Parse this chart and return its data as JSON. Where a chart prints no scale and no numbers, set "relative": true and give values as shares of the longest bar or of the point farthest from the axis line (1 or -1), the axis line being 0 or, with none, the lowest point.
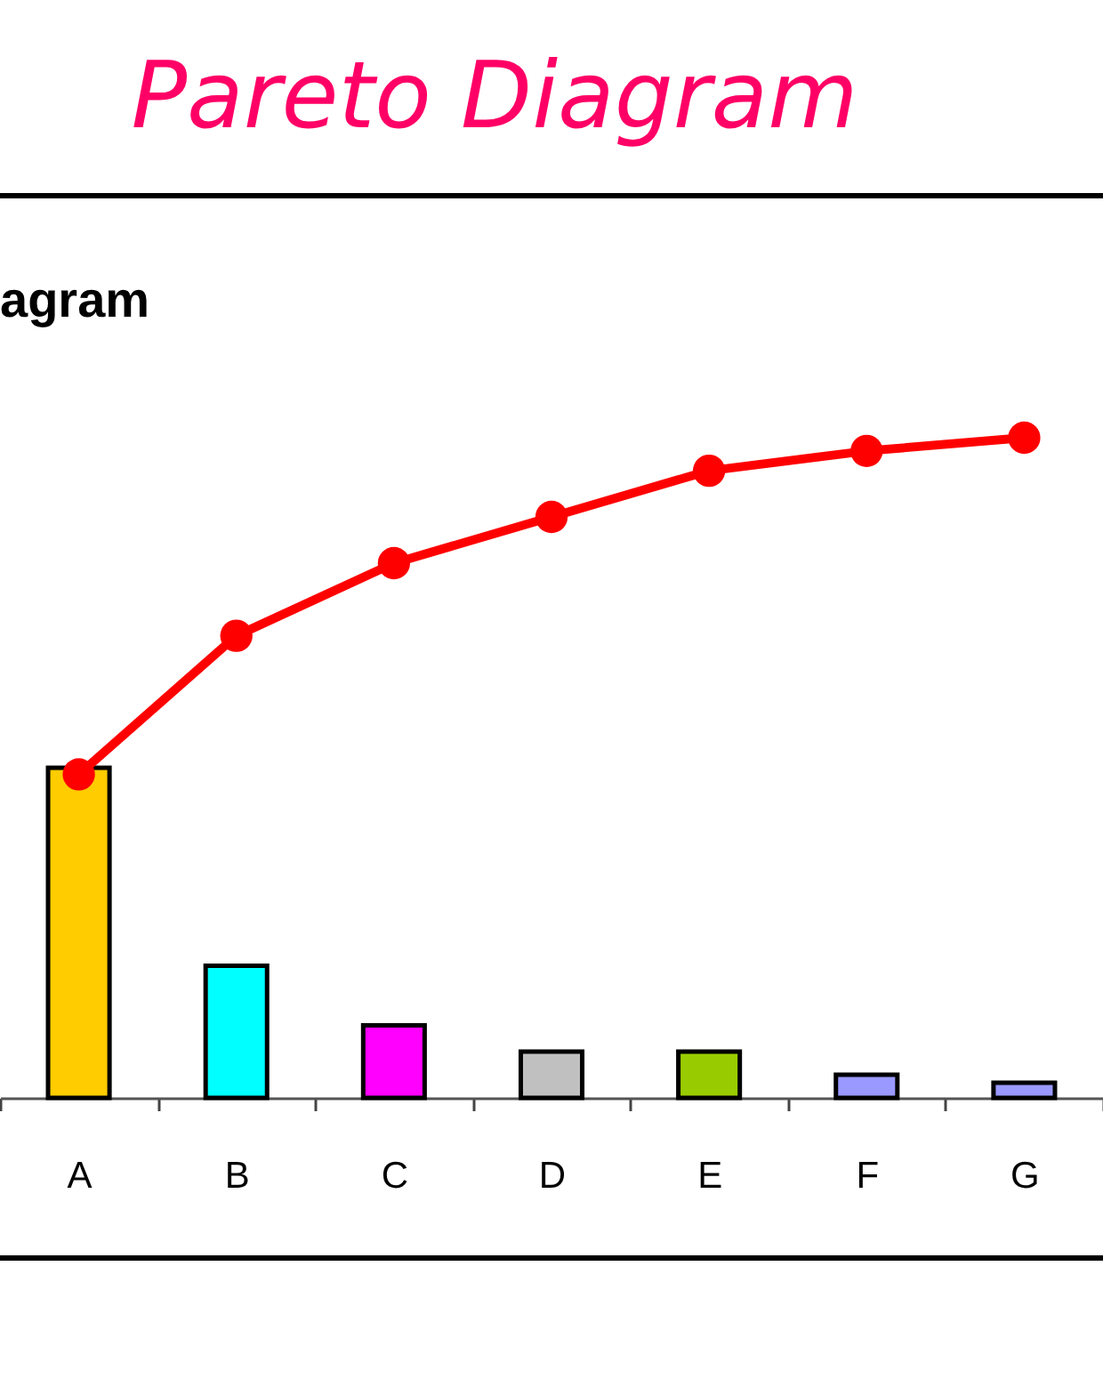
{
  "chart_data": {
    "type": "bar",
    "title": "Pareto Diagram",
    "subtitle": "agram",
    "relative": true,
    "categories": [
      "A",
      "B",
      "C",
      "D",
      "E",
      "F",
      "G"
    ],
    "series": [
      {
        "colors": [
          "#ffcc00",
          "#00ffff",
          "#ff00ff",
          "#c0c0c0",
          "#99cc00",
          "#9999ff",
          "#9999ff"
        ],
        "values": [
          0.5,
          0.2,
          0.11,
          0.07,
          0.07,
          0.035,
          0.023
        ]
      },
      {
        "type": "line",
        "color": "#ff0000",
        "marker": "circle",
        "values": [
          0.49,
          0.7,
          0.81,
          0.88,
          0.95,
          0.98,
          1
        ]
      }
    ]
  }
}
